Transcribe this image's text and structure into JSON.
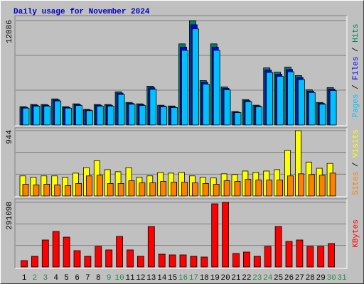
{
  "chart_data": [
    {
      "type": "bar",
      "title": "Daily usage for November 2024",
      "ylim": [
        0,
        12086
      ],
      "yticks": [
        12086
      ],
      "series": [
        {
          "name": "Hits",
          "color": "#00805c",
          "values": [
            2120,
            2370,
            2370,
            3020,
            2120,
            2450,
            1800,
            2370,
            2370,
            3840,
            2610,
            2450,
            4490,
            2290,
            2200,
            9390,
            12086,
            5140,
            9390,
            4410,
            1550,
            2940,
            2290,
            6610,
            6120,
            6700,
            5720,
            4080,
            2610,
            4330,
            null
          ]
        },
        {
          "name": "Files",
          "color": "#0000ff",
          "values": [
            2040,
            2280,
            2280,
            2900,
            2040,
            2350,
            1730,
            2280,
            2280,
            3690,
            2510,
            2350,
            4310,
            2200,
            2110,
            9020,
            11600,
            4930,
            9020,
            4230,
            1490,
            2820,
            2200,
            6350,
            5880,
            6430,
            5490,
            3920,
            2510,
            4160,
            null
          ]
        },
        {
          "name": "Pages",
          "color": "#00c0ff",
          "values": [
            1950,
            2180,
            2180,
            2780,
            1950,
            2250,
            1660,
            2180,
            2180,
            3530,
            2400,
            2250,
            4130,
            2110,
            2020,
            8640,
            11120,
            4730,
            8640,
            4060,
            1430,
            2700,
            2110,
            6080,
            5630,
            6160,
            5260,
            3750,
            2400,
            3980,
            null
          ]
        }
      ]
    },
    {
      "type": "bar",
      "ylim": [
        0,
        944
      ],
      "yticks": [
        944
      ],
      "series": [
        {
          "name": "Visits",
          "color": "#ffff00",
          "values": [
            290,
            270,
            290,
            290,
            270,
            330,
            410,
            510,
            380,
            350,
            410,
            270,
            290,
            340,
            330,
            340,
            290,
            270,
            260,
            320,
            310,
            360,
            340,
            360,
            380,
            660,
            944,
            490,
            400,
            470,
            null
          ]
        },
        {
          "name": "Sites",
          "color": "#ff8000",
          "values": [
            170,
            160,
            170,
            160,
            150,
            180,
            290,
            300,
            180,
            180,
            220,
            190,
            190,
            210,
            200,
            200,
            190,
            180,
            170,
            220,
            210,
            240,
            230,
            230,
            230,
            290,
            320,
            310,
            300,
            330,
            null
          ]
        }
      ]
    },
    {
      "type": "bar",
      "ylim": [
        0,
        291098
      ],
      "yticks": [
        291098
      ],
      "categories": [
        "1",
        "2",
        "3",
        "4",
        "5",
        "6",
        "7",
        "8",
        "9",
        "10",
        "11",
        "12",
        "13",
        "14",
        "15",
        "16",
        "17",
        "18",
        "19",
        "20",
        "21",
        "22",
        "23",
        "24",
        "25",
        "26",
        "27",
        "28",
        "29",
        "30",
        "31"
      ],
      "category_colors": [
        "#000000",
        "#2a8a4a",
        "#2a8a4a",
        "#000000",
        "#000000",
        "#000000",
        "#000000",
        "#000000",
        "#2a8a4a",
        "#2a8a4a",
        "#000000",
        "#000000",
        "#000000",
        "#000000",
        "#000000",
        "#2a8a4a",
        "#2a8a4a",
        "#000000",
        "#000000",
        "#000000",
        "#000000",
        "#000000",
        "#2a8a4a",
        "#2a8a4a",
        "#000000",
        "#000000",
        "#000000",
        "#000000",
        "#000000",
        "#2a8a4a",
        "#2a8a4a"
      ],
      "series": [
        {
          "name": "KBytes",
          "color": "#ff0000",
          "values": [
            28800,
            48000,
            121600,
            160000,
            134400,
            73600,
            48000,
            92800,
            76800,
            137600,
            76800,
            48000,
            182400,
            57600,
            54400,
            54400,
            48000,
            44800,
            284700,
            291098,
            60800,
            67200,
            48000,
            92800,
            182400,
            115200,
            121600,
            92800,
            92800,
            105600,
            null
          ]
        }
      ]
    }
  ]
}
